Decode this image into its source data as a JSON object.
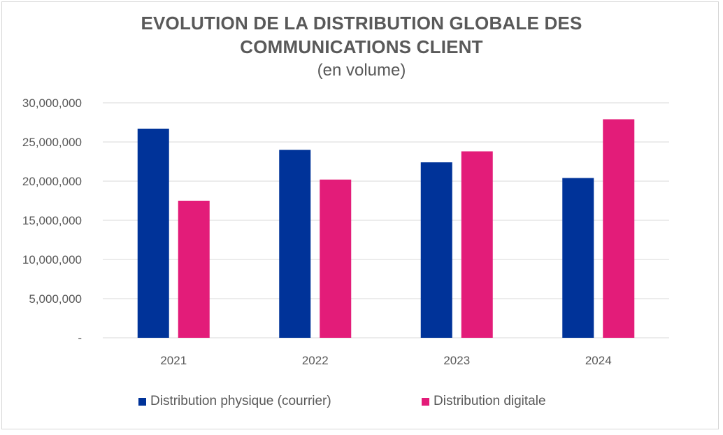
{
  "chart_data": {
    "type": "bar",
    "title_line1": "EVOLUTION DE LA DISTRIBUTION GLOBALE DES",
    "title_line2": "COMMUNICATIONS CLIENT",
    "subtitle": "(en volume)",
    "categories": [
      "2021",
      "2022",
      "2023",
      "2024"
    ],
    "series": [
      {
        "name": "Distribution physique (courrier)",
        "color": "#003399",
        "values": [
          26700000,
          24000000,
          22400000,
          20400000
        ]
      },
      {
        "name": "Distribution digitale",
        "color": "#E31C79",
        "values": [
          17500000,
          20200000,
          23800000,
          27900000
        ]
      }
    ],
    "ylim": [
      0,
      30000000
    ],
    "y_ticks": [
      {
        "value": 0,
        "label": "-"
      },
      {
        "value": 5000000,
        "label": "5,000,000"
      },
      {
        "value": 10000000,
        "label": "10,000,000"
      },
      {
        "value": 15000000,
        "label": "15,000,000"
      },
      {
        "value": 20000000,
        "label": "20,000,000"
      },
      {
        "value": 25000000,
        "label": "25,000,000"
      },
      {
        "value": 30000000,
        "label": "30,000,000"
      }
    ],
    "grid": true,
    "legend_position": "bottom"
  }
}
